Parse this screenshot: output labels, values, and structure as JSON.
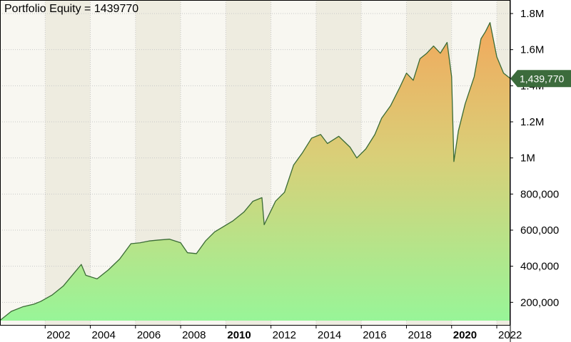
{
  "chart_data": {
    "type": "area",
    "title": "Portfolio Equity = 1439770",
    "last_value_label": "1,439,770",
    "xlabel": "",
    "ylabel": "",
    "ylim": [
      75000,
      1875000
    ],
    "xlim": [
      2000.0,
      2022.6
    ],
    "grid": true,
    "x_ticks": [
      {
        "year": 2002,
        "label": "2002",
        "bold": false
      },
      {
        "year": 2004,
        "label": "2004",
        "bold": false
      },
      {
        "year": 2006,
        "label": "2006",
        "bold": false
      },
      {
        "year": 2008,
        "label": "2008",
        "bold": false
      },
      {
        "year": 2010,
        "label": "2010",
        "bold": true
      },
      {
        "year": 2012,
        "label": "2012",
        "bold": false
      },
      {
        "year": 2014,
        "label": "2014",
        "bold": false
      },
      {
        "year": 2016,
        "label": "2016",
        "bold": false
      },
      {
        "year": 2018,
        "label": "2018",
        "bold": false
      },
      {
        "year": 2020,
        "label": "2020",
        "bold": true
      },
      {
        "year": 2022,
        "label": "2022",
        "bold": false
      }
    ],
    "y_ticks": [
      {
        "value": 200000,
        "label": "200,000"
      },
      {
        "value": 400000,
        "label": "400,000"
      },
      {
        "value": 600000,
        "label": "600,000"
      },
      {
        "value": 800000,
        "label": "800,000"
      },
      {
        "value": 1000000,
        "label": "1M"
      },
      {
        "value": 1200000,
        "label": "1.2M"
      },
      {
        "value": 1400000,
        "label": "1.4M"
      },
      {
        "value": 1600000,
        "label": "1.6M"
      },
      {
        "value": 1800000,
        "label": "1.8M"
      }
    ],
    "colors": {
      "line": "#3a6b35",
      "fill_top": "#f2a85c",
      "fill_mid": "#d9cf78",
      "fill_bottom": "#98f598",
      "band_light": "#f8f7f1",
      "band_dark": "#eeece0",
      "grid": "#c8c8c8",
      "label_bg": "#3c6b3c"
    },
    "series": [
      {
        "name": "Portfolio Equity",
        "x": [
          2000.0,
          2000.5,
          2001.0,
          2001.5,
          2001.8,
          2002.3,
          2002.8,
          2003.2,
          2003.6,
          2003.8,
          2004.3,
          2004.8,
          2005.3,
          2005.8,
          2006.2,
          2006.6,
          2007.0,
          2007.5,
          2008.0,
          2008.3,
          2008.7,
          2009.1,
          2009.5,
          2009.9,
          2010.3,
          2010.8,
          2011.2,
          2011.6,
          2011.7,
          2012.2,
          2012.6,
          2013.0,
          2013.4,
          2013.8,
          2014.2,
          2014.5,
          2015.0,
          2015.5,
          2015.8,
          2016.2,
          2016.6,
          2016.9,
          2017.3,
          2017.7,
          2018.0,
          2018.3,
          2018.6,
          2018.9,
          2019.2,
          2019.5,
          2019.8,
          2020.0,
          2020.1,
          2020.3,
          2020.6,
          2021.0,
          2021.3,
          2021.5,
          2021.7,
          2022.0,
          2022.3,
          2022.6
        ],
        "values": [
          100000,
          150000,
          175000,
          190000,
          205000,
          240000,
          290000,
          350000,
          410000,
          350000,
          330000,
          380000,
          440000,
          525000,
          530000,
          540000,
          545000,
          550000,
          530000,
          475000,
          470000,
          540000,
          590000,
          620000,
          650000,
          700000,
          760000,
          780000,
          630000,
          760000,
          810000,
          960000,
          1030000,
          1110000,
          1130000,
          1080000,
          1120000,
          1060000,
          1000000,
          1050000,
          1130000,
          1220000,
          1290000,
          1390000,
          1470000,
          1430000,
          1550000,
          1580000,
          1620000,
          1580000,
          1640000,
          1450000,
          980000,
          1150000,
          1300000,
          1450000,
          1660000,
          1700000,
          1750000,
          1560000,
          1470000,
          1439770
        ]
      }
    ]
  }
}
